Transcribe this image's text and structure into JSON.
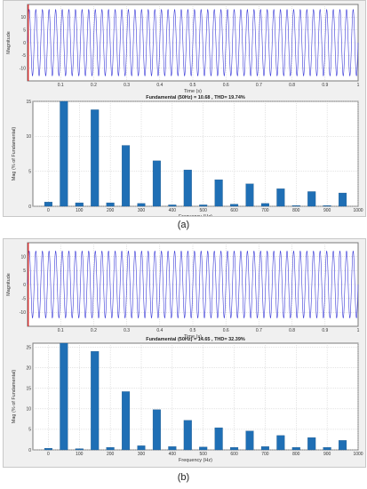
{
  "captions": {
    "a": "(a)",
    "b": "(b)"
  },
  "colors": {
    "wave": "#3a3ad8",
    "bar": "#1f6fb5",
    "marker": "#e02020",
    "grid": "#c8c8c8",
    "axis": "#7a7a7a",
    "panel": "#f0f0f0",
    "plot": "#ffffff"
  },
  "chart_data": [
    {
      "id": "a-time",
      "type": "line",
      "title": "",
      "xlabel": "Time (s)",
      "ylabel": "Magnitude",
      "xlim": [
        0,
        1
      ],
      "ylim": [
        -15,
        15
      ],
      "xticks": [
        "0.1",
        "0.2",
        "0.3",
        "0.4",
        "0.5",
        "0.6",
        "0.7",
        "0.8",
        "0.9",
        "1"
      ],
      "yticks": [
        "10",
        "5",
        "0",
        "-5",
        "-10"
      ],
      "series": [
        {
          "kind": "sinusoid",
          "frequency_hz": 50,
          "amplitude": 13,
          "values": []
        }
      ],
      "grid": true
    },
    {
      "id": "a-spectrum",
      "type": "bar",
      "title": "Fundamental (50Hz) = 10.68 , THD= 19.74%",
      "xlabel": "Frequency (Hz)",
      "ylabel": "Mag (% of Fundamental)",
      "xlim": [
        -50,
        1000
      ],
      "ylim": [
        0,
        15
      ],
      "xticks": [
        "0",
        "100",
        "200",
        "300",
        "400",
        "500",
        "600",
        "700",
        "800",
        "900",
        "1000"
      ],
      "yticks": [
        "15",
        "10",
        "5",
        "0"
      ],
      "x": [
        0,
        50,
        100,
        150,
        200,
        250,
        300,
        350,
        400,
        450,
        500,
        550,
        600,
        650,
        700,
        750,
        800,
        850,
        900,
        950
      ],
      "values": [
        0.6,
        15,
        0.5,
        13.8,
        0.5,
        8.7,
        0.4,
        6.5,
        0.2,
        5.2,
        0.2,
        3.8,
        0.3,
        3.2,
        0.4,
        2.5,
        0.1,
        2.1,
        0.1,
        1.9
      ],
      "grid": true
    },
    {
      "id": "b-time",
      "type": "line",
      "title": "",
      "xlabel": "Time (s)",
      "ylabel": "Magnitude",
      "xlim": [
        0,
        1
      ],
      "ylim": [
        -15,
        15
      ],
      "xticks": [
        "0.1",
        "0.2",
        "0.3",
        "0.4",
        "0.5",
        "0.6",
        "0.7",
        "0.8",
        "0.9",
        "1"
      ],
      "yticks": [
        "10",
        "5",
        "0",
        "-5",
        "-10"
      ],
      "series": [
        {
          "kind": "sinusoid",
          "frequency_hz": 50,
          "amplitude": 12,
          "values": []
        }
      ],
      "grid": true
    },
    {
      "id": "b-spectrum",
      "type": "bar",
      "title": "Fundamental (50Hz) = 14.65 , THD= 32.39%",
      "xlabel": "Frequency (Hz)",
      "ylabel": "Mag (% of Fundamental)",
      "xlim": [
        -50,
        1000
      ],
      "ylim": [
        0,
        26
      ],
      "xticks": [
        "0",
        "100",
        "200",
        "300",
        "400",
        "500",
        "600",
        "700",
        "800",
        "900",
        "1000"
      ],
      "yticks": [
        "25",
        "20",
        "15",
        "10",
        "5",
        "0"
      ],
      "x": [
        0,
        50,
        100,
        150,
        200,
        250,
        300,
        350,
        400,
        450,
        500,
        550,
        600,
        650,
        700,
        750,
        800,
        850,
        900,
        950
      ],
      "values": [
        0.4,
        26,
        0.3,
        24,
        0.6,
        14.2,
        1.0,
        9.8,
        0.8,
        7.2,
        0.7,
        5.4,
        0.6,
        4.6,
        0.8,
        3.5,
        0.6,
        3.0,
        0.6,
        2.3
      ],
      "grid": true
    }
  ]
}
